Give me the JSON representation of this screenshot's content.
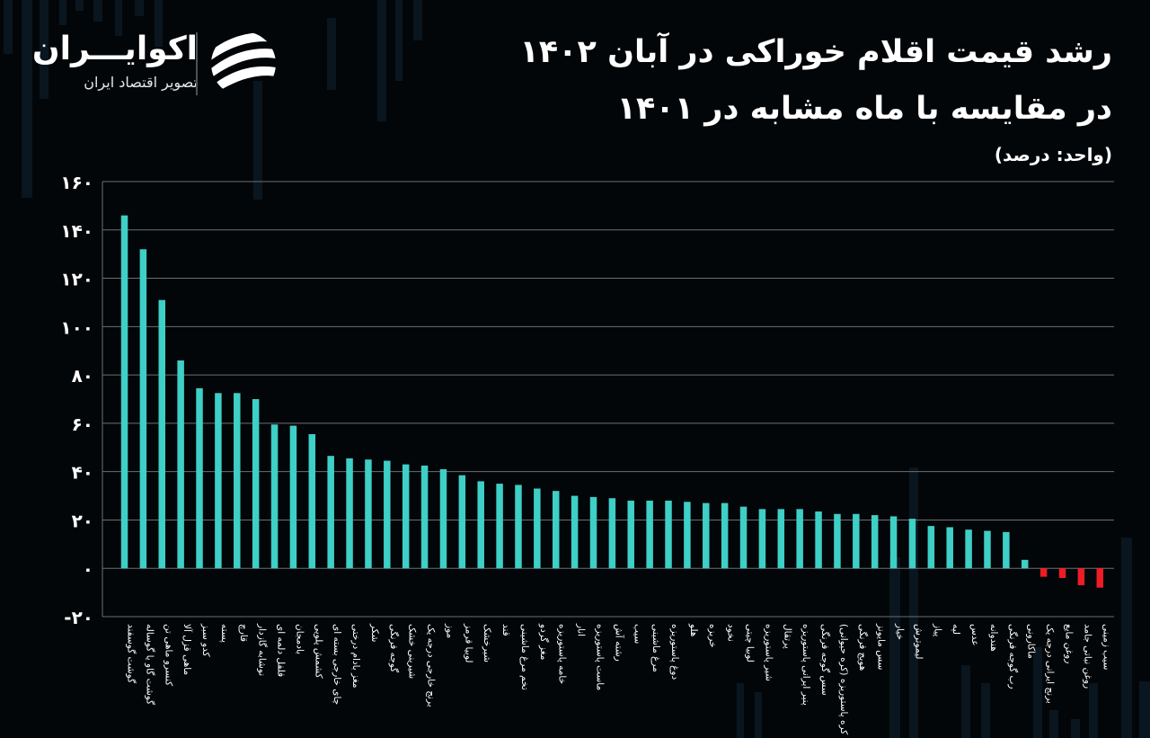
{
  "header": {
    "title_line1": "رشد قیمت اقلام خوراکی در آبان ۱۴۰۲",
    "title_line2": "در مقایسه با ماه مشابه در ۱۴۰۱",
    "unit": "(واحد: درصد)"
  },
  "logo": {
    "name": "اکوایـــران",
    "tagline": "تصویر اقتصاد ایران",
    "icon": "ekoiran-logo-icon"
  },
  "colors": {
    "positive": "#3ecfc6",
    "negative": "#ee1c24",
    "background": "#030608",
    "grid": "#6a6f74"
  },
  "chart_data": {
    "type": "bar",
    "ylim": [
      -20,
      160
    ],
    "grid": true,
    "yticks": [
      "۱۶۰",
      "۱۴۰",
      "۱۲۰",
      "۱۰۰",
      "۸۰",
      "۶۰",
      "۴۰",
      "۲۰",
      "۰",
      "-۲۰"
    ],
    "ytick_values": [
      160,
      140,
      120,
      100,
      80,
      60,
      40,
      20,
      0,
      -20
    ],
    "categories": [
      "گوشت گوسفند",
      "گوشت گاو یا گوساله",
      "کنسرو ماهی تن",
      "ماهی قزل آلا",
      "کدو سبز",
      "پسته",
      "قارچ",
      "نوشابه گازدار",
      "فلفل دلمه ای",
      "بادمجان",
      "کشمش پلویی",
      "چای خارجی بسته ای",
      "مغز بادام درختی",
      "شکر",
      "گوجه فرنگی",
      "شیرینی خشک",
      "برنج خارجی درجه یک",
      "موز",
      "لوبیا قرمز",
      "شیرخشک",
      "قند",
      "تخم مرغ ماشینی",
      "مغز گردو",
      "خامه پاستوریزه",
      "انار",
      "ماست پاستوریزه",
      "رشته آش",
      "سیب",
      "مرغ ماشینی",
      "دوغ پاستوریزه",
      "هلو",
      "خربزه",
      "نخود",
      "لوبیا چیتی",
      "شیر پاستوریزه",
      "پرتقال",
      "پنیر ایرانی پاستوریزه",
      "سس گوجه فرنگی",
      "کره پاستوریزه (کره حیوانی)",
      "هویج فرنگی",
      "سس مایونز",
      "خیار",
      "لیموترش",
      "پیاز",
      "لپه",
      "عدس",
      "هندوانه",
      "رب گوجه فرنگی",
      "ماکارونی",
      "برنج ایرانی درجه یک",
      "روغن مایع",
      "روغن نباتی جامد",
      "سیب زمینی"
    ],
    "values": [
      146,
      132,
      111,
      86,
      74.5,
      72.5,
      72.5,
      70,
      59.5,
      59,
      55.5,
      46.5,
      45.5,
      45,
      44.5,
      43,
      42.5,
      41,
      38.5,
      36,
      35,
      34.5,
      33,
      32,
      30,
      29.5,
      29,
      28,
      28,
      28,
      27.5,
      27,
      27,
      25.5,
      24.5,
      24.5,
      24.5,
      23.5,
      22.5,
      22.5,
      22,
      21.5,
      20.5,
      17.5,
      17,
      16,
      15.5,
      15,
      3.5,
      -3.5,
      -4,
      -7,
      -8
    ]
  }
}
